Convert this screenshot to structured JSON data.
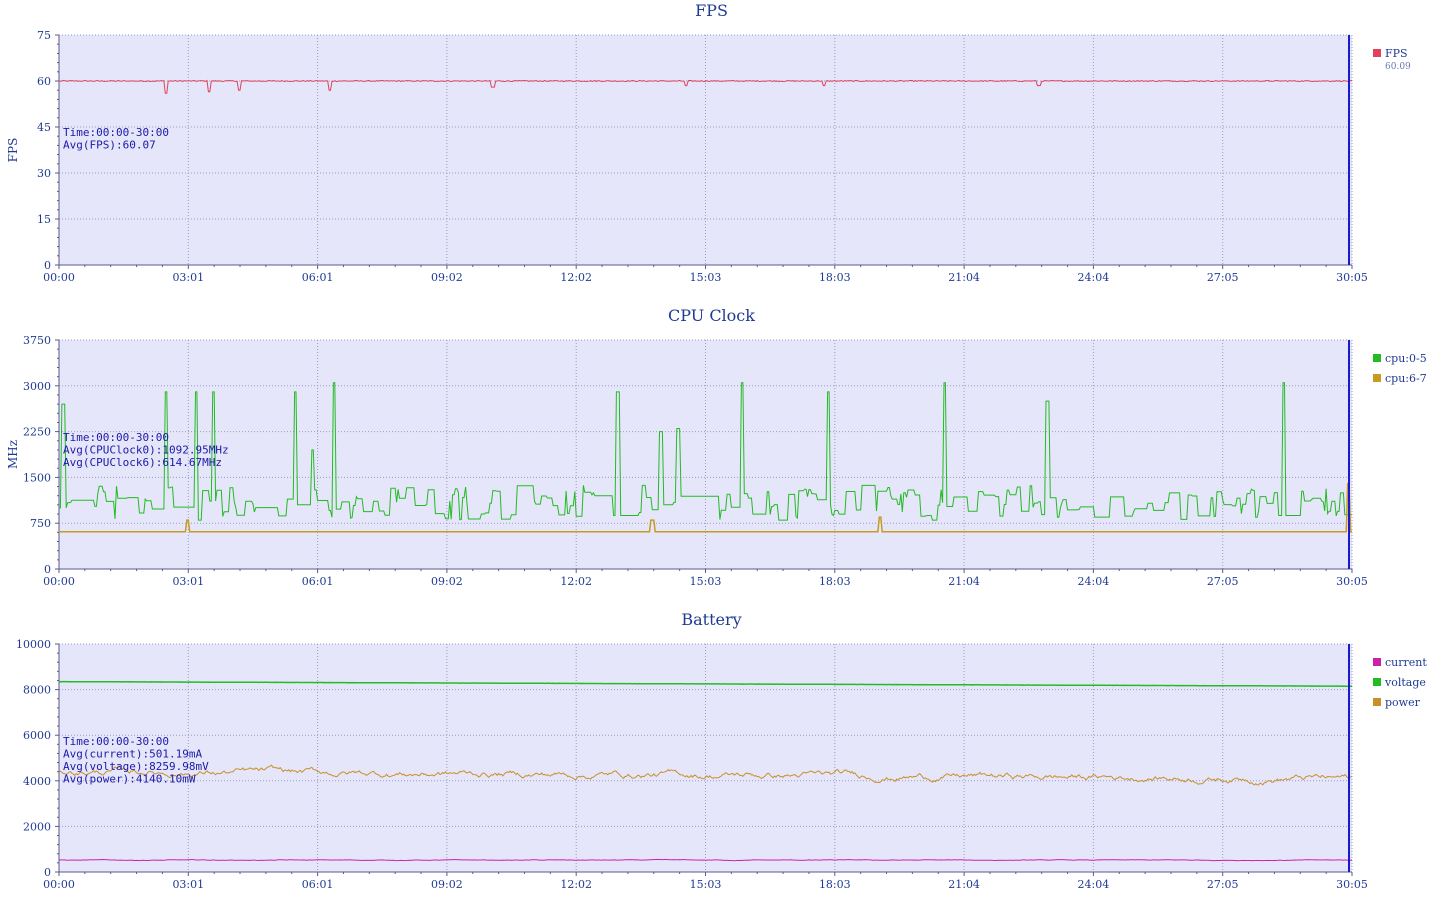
{
  "x_ticks": [
    "00:00",
    "03:01",
    "06:01",
    "09:02",
    "12:02",
    "15:03",
    "18:03",
    "21:04",
    "24:04",
    "27:05",
    "30:05"
  ],
  "colors": {
    "plot_bg": "#e6e6fa",
    "grid": "#9a9ac8",
    "axis": "#5a5a8a",
    "cursor": "#1a1acc"
  },
  "chart_data": [
    {
      "type": "line",
      "title": "FPS",
      "ylabel": "FPS",
      "ylim": [
        0,
        75
      ],
      "y_ticks": [
        0,
        15,
        30,
        45,
        60,
        75
      ],
      "xlim": [
        "00:00",
        "30:05"
      ],
      "grid": true,
      "legend_position": "right",
      "annotation": [
        "Time:00:00-30:00",
        "Avg(FPS):60.07"
      ],
      "series": [
        {
          "name": "FPS",
          "color": "#e0405a",
          "legend_value": "60.09",
          "base": 60,
          "noise": 0.35,
          "spikes": [
            [
              2.5,
              56
            ],
            [
              3.5,
              56.5
            ],
            [
              4.2,
              57
            ],
            [
              6.3,
              57
            ],
            [
              10.1,
              58
            ],
            [
              14.6,
              58.5
            ],
            [
              17.8,
              58.5
            ],
            [
              22.8,
              58.5
            ]
          ]
        }
      ]
    },
    {
      "type": "line",
      "title": "CPU Clock",
      "ylabel": "MHz",
      "ylim": [
        0,
        3750
      ],
      "y_ticks": [
        0,
        750,
        1500,
        2250,
        3000,
        3750
      ],
      "xlim": [
        "00:00",
        "30:05"
      ],
      "grid": true,
      "legend_position": "right",
      "annotation": [
        "Time:00:00-30:00",
        "Avg(CPUClock0):1092.95MHz",
        "Avg(CPUClock6):614.67MHz"
      ],
      "series": [
        {
          "name": "cpu:0-5",
          "color": "#22bb22",
          "base": 1000,
          "noise": 260,
          "floor": 750,
          "spikes": [
            [
              0.1,
              2700
            ],
            [
              2.5,
              2900
            ],
            [
              3.2,
              2900
            ],
            [
              3.6,
              2900
            ],
            [
              5.5,
              2900
            ],
            [
              5.9,
              1950
            ],
            [
              6.4,
              3050
            ],
            [
              13.0,
              2900
            ],
            [
              14.0,
              2250
            ],
            [
              14.4,
              2300
            ],
            [
              15.9,
              3050
            ],
            [
              17.9,
              2900
            ],
            [
              20.6,
              3050
            ],
            [
              23.0,
              2750
            ],
            [
              28.5,
              3050
            ]
          ]
        },
        {
          "name": "cpu:6-7",
          "color": "#c89a20",
          "base": 610,
          "noise": 0,
          "spikes": [
            [
              3.0,
              800
            ],
            [
              13.8,
              800
            ],
            [
              19.1,
              850
            ],
            [
              30.0,
              1400
            ]
          ]
        }
      ]
    },
    {
      "type": "line",
      "title": "Battery",
      "ylabel": "",
      "ylim": [
        0,
        10000
      ],
      "y_ticks": [
        0,
        2000,
        4000,
        6000,
        8000,
        10000
      ],
      "xlim": [
        "00:00",
        "30:05"
      ],
      "grid": true,
      "legend_position": "right",
      "annotation": [
        "Time:00:00-30:00",
        "Avg(current):501.19mA",
        "Avg(voltage):8259.98mV",
        "Avg(power):4140.10mW"
      ],
      "series": [
        {
          "name": "current",
          "color": "#cc22aa",
          "start": 520,
          "end": 520,
          "noise": 30
        },
        {
          "name": "voltage",
          "color": "#22bb22",
          "start": 8350,
          "end": 8150,
          "noise": 4
        },
        {
          "name": "power",
          "color": "#c8902a",
          "start": 4400,
          "end": 4100,
          "noise": 320
        }
      ]
    }
  ]
}
